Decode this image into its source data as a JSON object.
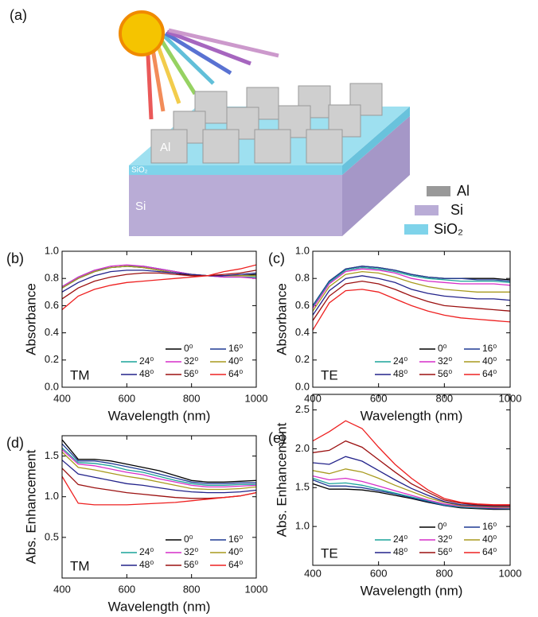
{
  "diagram": {
    "panel": "(a)",
    "block_labels": [
      "Al",
      "SiO₂",
      "Si"
    ],
    "legend": [
      "Al",
      "Si",
      "SiO₂"
    ]
  },
  "chart_data": [
    {
      "type": "line",
      "panel": "(b)",
      "annotation": "TM",
      "x_label": "Wavelength (nm)",
      "y_label": "Absorbance",
      "x": [
        400,
        450,
        500,
        550,
        600,
        650,
        700,
        750,
        800,
        850,
        900,
        950,
        1000
      ],
      "xlim": [
        400,
        1000
      ],
      "xticks": [
        400,
        600,
        800,
        1000
      ],
      "ylim": [
        0,
        1
      ],
      "yticks": [
        {
          "value": 0,
          "label": "0.0"
        },
        0.2,
        0.4,
        0.6,
        0.8,
        {
          "value": 1,
          "label": "1.0"
        }
      ],
      "series": [
        {
          "name": "0⁰",
          "color": "#000000",
          "values": [
            0.73,
            0.8,
            0.85,
            0.88,
            0.89,
            0.88,
            0.86,
            0.84,
            0.82,
            0.82,
            0.82,
            0.82,
            0.83
          ]
        },
        {
          "name": "16⁰",
          "color": "#1f3a93",
          "values": [
            0.73,
            0.8,
            0.85,
            0.88,
            0.89,
            0.89,
            0.87,
            0.85,
            0.83,
            0.82,
            0.82,
            0.82,
            0.82
          ]
        },
        {
          "name": "24⁰",
          "color": "#1aa39a",
          "values": [
            0.74,
            0.81,
            0.86,
            0.88,
            0.89,
            0.89,
            0.87,
            0.85,
            0.83,
            0.82,
            0.81,
            0.81,
            0.81
          ]
        },
        {
          "name": "32⁰",
          "color": "#d62ec8",
          "values": [
            0.74,
            0.81,
            0.86,
            0.89,
            0.9,
            0.89,
            0.87,
            0.85,
            0.83,
            0.82,
            0.81,
            0.81,
            0.8
          ]
        },
        {
          "name": "40⁰",
          "color": "#a89a1e",
          "values": [
            0.73,
            0.8,
            0.85,
            0.88,
            0.89,
            0.88,
            0.86,
            0.84,
            0.83,
            0.82,
            0.82,
            0.82,
            0.82
          ]
        },
        {
          "name": "48⁰",
          "color": "#22228a",
          "values": [
            0.7,
            0.77,
            0.82,
            0.85,
            0.86,
            0.86,
            0.85,
            0.84,
            0.83,
            0.82,
            0.82,
            0.83,
            0.84
          ]
        },
        {
          "name": "56⁰",
          "color": "#9b1010",
          "values": [
            0.65,
            0.73,
            0.78,
            0.81,
            0.83,
            0.84,
            0.84,
            0.83,
            0.82,
            0.82,
            0.83,
            0.84,
            0.86
          ]
        },
        {
          "name": "64⁰",
          "color": "#ee2020",
          "values": [
            0.57,
            0.67,
            0.72,
            0.75,
            0.77,
            0.78,
            0.79,
            0.8,
            0.81,
            0.82,
            0.85,
            0.87,
            0.9
          ]
        }
      ]
    },
    {
      "type": "line",
      "panel": "(c)",
      "annotation": "TE",
      "x_label": "Wavelength (nm)",
      "y_label": "Absorbance",
      "x": [
        400,
        450,
        500,
        550,
        600,
        650,
        700,
        750,
        800,
        850,
        900,
        950,
        1000
      ],
      "xlim": [
        400,
        1000
      ],
      "xticks": [
        400,
        600,
        800,
        1000
      ],
      "ylim": [
        0,
        1
      ],
      "yticks": [
        {
          "value": 0,
          "label": "0.0"
        },
        0.2,
        0.4,
        0.6,
        0.8,
        {
          "value": 1,
          "label": "1.0"
        }
      ],
      "series": [
        {
          "name": "0⁰",
          "color": "#000000",
          "values": [
            0.6,
            0.78,
            0.87,
            0.89,
            0.88,
            0.86,
            0.83,
            0.81,
            0.8,
            0.8,
            0.8,
            0.8,
            0.79
          ]
        },
        {
          "name": "16⁰",
          "color": "#1f3a93",
          "values": [
            0.6,
            0.78,
            0.87,
            0.89,
            0.88,
            0.86,
            0.83,
            0.81,
            0.8,
            0.8,
            0.79,
            0.79,
            0.78
          ]
        },
        {
          "name": "24⁰",
          "color": "#1aa39a",
          "values": [
            0.59,
            0.77,
            0.86,
            0.88,
            0.87,
            0.85,
            0.82,
            0.8,
            0.79,
            0.78,
            0.78,
            0.78,
            0.77
          ]
        },
        {
          "name": "32⁰",
          "color": "#d62ec8",
          "values": [
            0.58,
            0.76,
            0.85,
            0.87,
            0.86,
            0.84,
            0.8,
            0.78,
            0.77,
            0.76,
            0.76,
            0.76,
            0.75
          ]
        },
        {
          "name": "40⁰",
          "color": "#a89a1e",
          "values": [
            0.56,
            0.74,
            0.83,
            0.85,
            0.84,
            0.81,
            0.77,
            0.74,
            0.72,
            0.71,
            0.7,
            0.7,
            0.7
          ]
        },
        {
          "name": "48⁰",
          "color": "#22228a",
          "values": [
            0.53,
            0.71,
            0.8,
            0.82,
            0.8,
            0.77,
            0.72,
            0.69,
            0.67,
            0.66,
            0.65,
            0.65,
            0.64
          ]
        },
        {
          "name": "56⁰",
          "color": "#9b1010",
          "values": [
            0.49,
            0.67,
            0.76,
            0.78,
            0.76,
            0.72,
            0.67,
            0.63,
            0.6,
            0.59,
            0.58,
            0.57,
            0.56
          ]
        },
        {
          "name": "64⁰",
          "color": "#ee2020",
          "values": [
            0.42,
            0.62,
            0.71,
            0.72,
            0.7,
            0.65,
            0.6,
            0.56,
            0.53,
            0.51,
            0.5,
            0.49,
            0.48
          ]
        }
      ]
    },
    {
      "type": "line",
      "panel": "(d)",
      "annotation": "TM",
      "x_label": "Wavelength (nm)",
      "y_label": "Abs. Enhancement",
      "x": [
        400,
        450,
        500,
        550,
        600,
        650,
        700,
        750,
        800,
        850,
        900,
        950,
        1000
      ],
      "xlim": [
        400,
        1000
      ],
      "xticks": [
        400,
        600,
        800,
        1000
      ],
      "ylim": [
        0,
        1.75
      ],
      "yticks": [
        0.5,
        {
          "value": 1,
          "label": "1.0"
        },
        1.5
      ],
      "series": [
        {
          "name": "0⁰",
          "color": "#000000",
          "values": [
            1.7,
            1.46,
            1.46,
            1.44,
            1.4,
            1.36,
            1.32,
            1.26,
            1.2,
            1.18,
            1.18,
            1.19,
            1.2
          ]
        },
        {
          "name": "16⁰",
          "color": "#1f3a93",
          "values": [
            1.65,
            1.44,
            1.44,
            1.41,
            1.37,
            1.33,
            1.28,
            1.23,
            1.18,
            1.16,
            1.16,
            1.17,
            1.17
          ]
        },
        {
          "name": "24⁰",
          "color": "#1aa39a",
          "values": [
            1.6,
            1.42,
            1.41,
            1.38,
            1.33,
            1.3,
            1.25,
            1.2,
            1.16,
            1.14,
            1.14,
            1.15,
            1.15
          ]
        },
        {
          "name": "32⁰",
          "color": "#d62ec8",
          "values": [
            1.58,
            1.4,
            1.38,
            1.34,
            1.3,
            1.27,
            1.22,
            1.18,
            1.14,
            1.12,
            1.12,
            1.13,
            1.14
          ]
        },
        {
          "name": "40⁰",
          "color": "#a89a1e",
          "values": [
            1.55,
            1.36,
            1.33,
            1.29,
            1.25,
            1.22,
            1.18,
            1.14,
            1.1,
            1.09,
            1.09,
            1.1,
            1.12
          ]
        },
        {
          "name": "48⁰",
          "color": "#22228a",
          "values": [
            1.45,
            1.28,
            1.24,
            1.2,
            1.16,
            1.14,
            1.11,
            1.08,
            1.06,
            1.05,
            1.05,
            1.06,
            1.08
          ]
        },
        {
          "name": "56⁰",
          "color": "#9b1010",
          "values": [
            1.35,
            1.15,
            1.11,
            1.08,
            1.05,
            1.03,
            1.01,
            0.99,
            0.98,
            0.98,
            0.99,
            1.01,
            1.05
          ]
        },
        {
          "name": "64⁰",
          "color": "#ee2020",
          "values": [
            1.25,
            0.92,
            0.9,
            0.9,
            0.9,
            0.91,
            0.92,
            0.93,
            0.95,
            0.97,
            0.99,
            1.01,
            1.05
          ]
        }
      ]
    },
    {
      "type": "line",
      "panel": "(e)",
      "annotation": "TE",
      "x_label": "Wavelength (nm)",
      "y_label": "Abs. Enhancement",
      "x": [
        400,
        450,
        500,
        550,
        600,
        650,
        700,
        750,
        800,
        850,
        900,
        950,
        1000
      ],
      "xlim": [
        400,
        1000
      ],
      "xticks": [
        400,
        600,
        800,
        1000
      ],
      "ylim": [
        0.5,
        2.7
      ],
      "yticks": [
        {
          "value": 1,
          "label": "1.0"
        },
        1.5,
        {
          "value": 2,
          "label": "2.0"
        },
        2.5
      ],
      "series": [
        {
          "name": "0⁰",
          "color": "#000000",
          "values": [
            1.55,
            1.48,
            1.48,
            1.47,
            1.44,
            1.4,
            1.36,
            1.31,
            1.27,
            1.24,
            1.23,
            1.22,
            1.22
          ]
        },
        {
          "name": "16⁰",
          "color": "#1f3a93",
          "values": [
            1.6,
            1.52,
            1.52,
            1.5,
            1.46,
            1.42,
            1.37,
            1.32,
            1.27,
            1.25,
            1.24,
            1.23,
            1.23
          ]
        },
        {
          "name": "24⁰",
          "color": "#1aa39a",
          "values": [
            1.62,
            1.55,
            1.56,
            1.53,
            1.48,
            1.43,
            1.38,
            1.33,
            1.28,
            1.25,
            1.24,
            1.24,
            1.23
          ]
        },
        {
          "name": "32⁰",
          "color": "#d62ec8",
          "values": [
            1.65,
            1.6,
            1.62,
            1.58,
            1.52,
            1.46,
            1.4,
            1.34,
            1.29,
            1.26,
            1.25,
            1.24,
            1.24
          ]
        },
        {
          "name": "40⁰",
          "color": "#a89a1e",
          "values": [
            1.72,
            1.68,
            1.74,
            1.7,
            1.62,
            1.53,
            1.45,
            1.37,
            1.31,
            1.27,
            1.26,
            1.25,
            1.25
          ]
        },
        {
          "name": "48⁰",
          "color": "#22228a",
          "values": [
            1.82,
            1.8,
            1.9,
            1.84,
            1.72,
            1.6,
            1.49,
            1.4,
            1.32,
            1.28,
            1.27,
            1.26,
            1.26
          ]
        },
        {
          "name": "56⁰",
          "color": "#9b1010",
          "values": [
            1.95,
            1.98,
            2.1,
            2.02,
            1.86,
            1.7,
            1.55,
            1.44,
            1.34,
            1.3,
            1.28,
            1.27,
            1.27
          ]
        },
        {
          "name": "64⁰",
          "color": "#ee2020",
          "values": [
            2.1,
            2.22,
            2.36,
            2.26,
            2.02,
            1.8,
            1.62,
            1.47,
            1.36,
            1.31,
            1.29,
            1.28,
            1.28
          ]
        }
      ]
    }
  ]
}
